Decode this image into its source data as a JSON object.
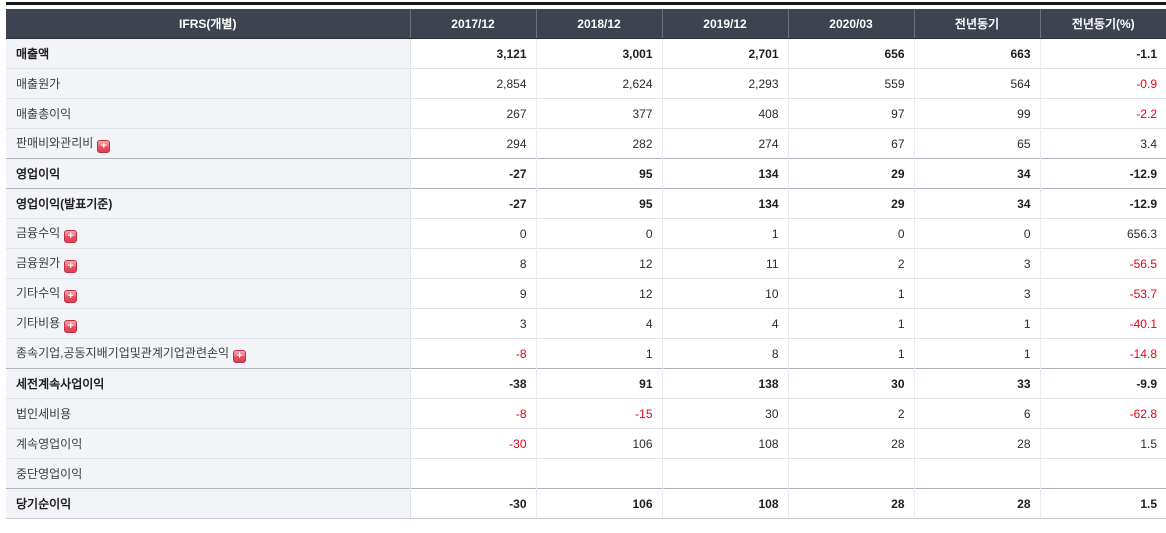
{
  "table": {
    "title": "IFRS income statement (individual)",
    "columns": [
      {
        "label": "IFRS(개별)"
      },
      {
        "label": "2017/12"
      },
      {
        "label": "2018/12"
      },
      {
        "label": "2019/12"
      },
      {
        "label": "2020/03"
      },
      {
        "label": "전년동기"
      },
      {
        "label": "전년동기(%)"
      }
    ],
    "rows": [
      {
        "label": "매출액",
        "bold": true,
        "expand": false,
        "values": [
          "3,121",
          "3,001",
          "2,701",
          "656",
          "663",
          "-1.1"
        ]
      },
      {
        "label": "매출원가",
        "bold": false,
        "expand": false,
        "values": [
          "2,854",
          "2,624",
          "2,293",
          "559",
          "564",
          "-0.9"
        ]
      },
      {
        "label": "매출총이익",
        "bold": false,
        "expand": false,
        "values": [
          "267",
          "377",
          "408",
          "97",
          "99",
          "-2.2"
        ]
      },
      {
        "label": "판매비와관리비",
        "bold": false,
        "expand": true,
        "values": [
          "294",
          "282",
          "274",
          "67",
          "65",
          "3.4"
        ]
      },
      {
        "label": "영업이익",
        "bold": true,
        "expand": false,
        "values": [
          "-27",
          "95",
          "134",
          "29",
          "34",
          "-12.9"
        ]
      },
      {
        "label": "영업이익(발표기준)",
        "bold": true,
        "expand": false,
        "values": [
          "-27",
          "95",
          "134",
          "29",
          "34",
          "-12.9"
        ]
      },
      {
        "label": "금융수익",
        "bold": false,
        "expand": true,
        "values": [
          "0",
          "0",
          "1",
          "0",
          "0",
          "656.3"
        ]
      },
      {
        "label": "금융원가",
        "bold": false,
        "expand": true,
        "values": [
          "8",
          "12",
          "11",
          "2",
          "3",
          "-56.5"
        ]
      },
      {
        "label": "기타수익",
        "bold": false,
        "expand": true,
        "values": [
          "9",
          "12",
          "10",
          "1",
          "3",
          "-53.7"
        ]
      },
      {
        "label": "기타비용",
        "bold": false,
        "expand": true,
        "values": [
          "3",
          "4",
          "4",
          "1",
          "1",
          "-40.1"
        ]
      },
      {
        "label": "종속기업,공동지배기업및관계기업관련손익",
        "bold": false,
        "expand": true,
        "values": [
          "-8",
          "1",
          "8",
          "1",
          "1",
          "-14.8"
        ]
      },
      {
        "label": "세전계속사업이익",
        "bold": true,
        "expand": false,
        "values": [
          "-38",
          "91",
          "138",
          "30",
          "33",
          "-9.9"
        ]
      },
      {
        "label": "법인세비용",
        "bold": false,
        "expand": false,
        "values": [
          "-8",
          "-15",
          "30",
          "2",
          "6",
          "-62.8"
        ]
      },
      {
        "label": "계속영업이익",
        "bold": false,
        "expand": false,
        "values": [
          "-30",
          "106",
          "108",
          "28",
          "28",
          "1.5"
        ]
      },
      {
        "label": "중단영업이익",
        "bold": false,
        "expand": false,
        "values": [
          "",
          "",
          "",
          "",
          "",
          ""
        ]
      },
      {
        "label": "당기순이익",
        "bold": true,
        "expand": false,
        "values": [
          "-30",
          "106",
          "108",
          "28",
          "28",
          "1.5"
        ]
      }
    ],
    "colors": {
      "header_bg": "#3d4450",
      "header_text": "#ffffff",
      "label_col_bg": "#f2f4f8",
      "negative_value": "#e60019",
      "top_accent": "#15181d"
    },
    "icons": {
      "expand": "plus-in-rounded-red-square"
    }
  }
}
